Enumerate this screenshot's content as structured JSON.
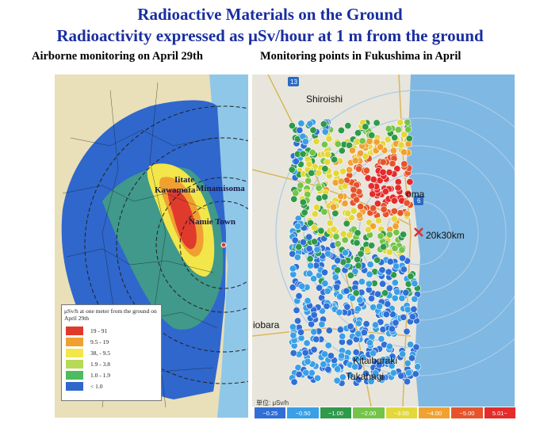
{
  "title_line1": "Radioactive Materials on the Ground",
  "title_line2": "Radioactivity expressed as μSv/hour at 1 m from the ground",
  "left_panel": {
    "subtitle": "Airborne monitoring on April 29th",
    "places": [
      "Iitate",
      "Kawamata",
      "Minamisoma",
      "Namie Town"
    ],
    "legend": {
      "title": "μSv/h at one meter from the ground on April 29th",
      "items": [
        {
          "label": "19 - 91",
          "color": "#e03a2c"
        },
        {
          "label": "9.5 - 19",
          "color": "#f0a030"
        },
        {
          "label": "38, - 9.5",
          "color": "#f3e64a"
        },
        {
          "label": "1.9 - 3.8",
          "color": "#b6da55"
        },
        {
          "label": "1.0 - 1.9",
          "color": "#4dbb5e"
        },
        {
          "label": "< 1.0",
          "color": "#2f67cc"
        }
      ]
    }
  },
  "right_panel": {
    "subtitle": "Monitoring points in Fukushima in April",
    "places": [
      "Shiroishi",
      "oma",
      "iobara",
      "Kitaibaraki",
      "Takahagi"
    ],
    "route_labels": [
      "13",
      "6"
    ],
    "ring_label": "20k30km",
    "unit_label": "単位: μSv/h",
    "colorbar": [
      {
        "label": "~0.25",
        "color": "#2f6fd6"
      },
      {
        "label": "~0.50",
        "color": "#3aa0e6"
      },
      {
        "label": "~1.00",
        "color": "#2f9a4a"
      },
      {
        "label": "~2.00",
        "color": "#74c44a"
      },
      {
        "label": "~3.00",
        "color": "#e3d83a"
      },
      {
        "label": "~4.00",
        "color": "#efa232"
      },
      {
        "label": "~5.00",
        "color": "#e5542c"
      },
      {
        "label": "5.01~",
        "color": "#e52b2b"
      }
    ]
  }
}
